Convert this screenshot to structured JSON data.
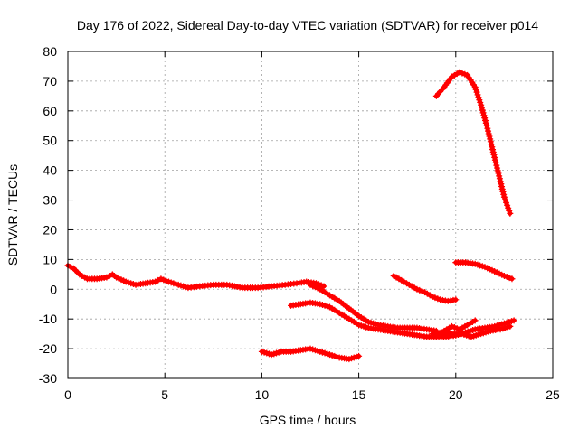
{
  "chart_data": {
    "type": "scatter",
    "title": "Day 176 of 2022, Sidereal Day-to-day VTEC variation (SDTVAR) for receiver p014",
    "xlabel": "GPS time / hours",
    "ylabel": "SDTVAR / TECUs",
    "xlim": [
      0,
      25
    ],
    "ylim": [
      -30,
      80
    ],
    "xticks": [
      0,
      5,
      10,
      15,
      20,
      25
    ],
    "yticks": [
      -30,
      -20,
      -10,
      0,
      10,
      20,
      30,
      40,
      50,
      60,
      70,
      80
    ],
    "grid": true,
    "legend": "none",
    "marker": "plus",
    "series_color": "#ff0000",
    "series": [
      {
        "name": "track-1",
        "x": [
          0.0,
          0.3,
          0.6,
          1.0,
          1.5,
          2.0,
          2.3,
          2.5,
          3.0,
          3.5,
          4.0,
          4.5,
          4.8,
          5.2,
          5.7,
          6.2,
          6.8,
          7.5,
          8.2,
          9.0,
          9.8,
          10.5,
          11.2,
          11.8,
          12.3,
          12.8,
          13.2
        ],
        "y": [
          8,
          7,
          5,
          3.5,
          3.5,
          4,
          5,
          4,
          2.5,
          1.5,
          2,
          2.5,
          3.5,
          2.5,
          1.5,
          0.5,
          1,
          1.5,
          1.5,
          0.5,
          0.5,
          1,
          1.5,
          2,
          2.5,
          2,
          1
        ]
      },
      {
        "name": "track-2",
        "x": [
          11.5,
          12.0,
          12.5,
          13.0,
          13.5,
          14.0,
          14.5,
          15.0,
          15.5,
          16.0,
          16.5,
          17.0,
          17.5,
          18.0,
          18.5,
          19.0,
          19.5,
          20.0
        ],
        "y": [
          -5.5,
          -5,
          -4.5,
          -5,
          -6,
          -8,
          -10,
          -12,
          -13,
          -13.5,
          -14,
          -14.5,
          -15,
          -15.5,
          -16,
          -16,
          -16,
          -15.5
        ]
      },
      {
        "name": "track-3",
        "x": [
          12.5,
          13.0,
          13.5,
          14.0,
          14.5,
          15.0,
          15.5,
          16.0,
          16.5,
          17.0,
          17.5,
          18.0,
          18.5,
          19.0
        ],
        "y": [
          1.5,
          0,
          -2,
          -4,
          -6.5,
          -9,
          -11,
          -12,
          -12.5,
          -13,
          -13,
          -13,
          -13.5,
          -14
        ]
      },
      {
        "name": "track-4",
        "x": [
          10.0,
          10.5,
          11.0,
          11.5,
          12.0,
          12.5,
          13.0,
          13.5,
          14.0,
          14.5,
          15.0
        ],
        "y": [
          -21,
          -22,
          -21,
          -21,
          -20.5,
          -20,
          -21,
          -22,
          -23,
          -23.5,
          -22.5
        ]
      },
      {
        "name": "track-5",
        "x": [
          16.8,
          17.2,
          17.6,
          18.0,
          18.4,
          18.8,
          19.2,
          19.6,
          20.0
        ],
        "y": [
          4.5,
          3,
          1.5,
          0,
          -1,
          -2.5,
          -3.5,
          -4,
          -3.5
        ]
      },
      {
        "name": "track-6",
        "x": [
          19.0,
          19.5,
          20.0,
          20.5,
          21.0,
          21.5,
          22.0,
          22.5,
          23.0
        ],
        "y": [
          -15,
          -15.5,
          -15.5,
          -14.5,
          -13.5,
          -13,
          -12.5,
          -11.5,
          -10.5
        ]
      },
      {
        "name": "track-7",
        "x": [
          19.0,
          19.4,
          19.8,
          20.2,
          20.6,
          21.0
        ],
        "y": [
          -16,
          -14,
          -12.5,
          -13.5,
          -12,
          -10.5
        ]
      },
      {
        "name": "track-8",
        "x": [
          18.8,
          19.3,
          19.8,
          20.3,
          20.8,
          21.3,
          21.8,
          22.3,
          22.8
        ],
        "y": [
          -15,
          -14.5,
          -15,
          -15,
          -16,
          -15,
          -14,
          -13.5,
          -12.5
        ]
      },
      {
        "name": "track-9",
        "x": [
          20.0,
          20.5,
          21.0,
          21.5,
          22.0,
          22.5,
          22.9
        ],
        "y": [
          9,
          9,
          8.5,
          7.5,
          6,
          4.5,
          3.5
        ]
      },
      {
        "name": "track-10",
        "x": [
          19.0,
          19.4,
          19.8,
          20.2,
          20.6,
          21.0,
          21.3,
          21.6,
          21.9,
          22.2,
          22.5,
          22.8
        ],
        "y": [
          65,
          68,
          71.5,
          73,
          72,
          68,
          62,
          55,
          47,
          39,
          31,
          25.5
        ]
      }
    ]
  }
}
